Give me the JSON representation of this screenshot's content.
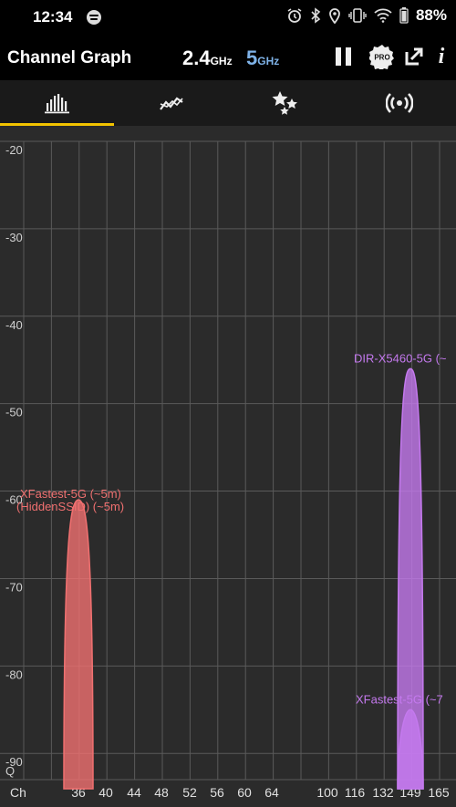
{
  "status_bar": {
    "time": "12:34",
    "battery": "88%",
    "icons": [
      "spotify-icon",
      "alarm-icon",
      "bluetooth-icon",
      "location-icon",
      "vibrate-icon",
      "wifi-icon",
      "battery-icon"
    ]
  },
  "toolbar": {
    "title": "Channel Graph",
    "band_24": "2.4",
    "band_24_unit": "GHz",
    "band_5": "5",
    "band_5_unit": "GHz",
    "active_band": "5GHz",
    "pro_label": "PRO",
    "info_label": "i",
    "colors": {
      "active_band": "#7fb3e8"
    }
  },
  "tabs": [
    {
      "name": "channel-graph",
      "icon": "bar-chart-icon",
      "active": true
    },
    {
      "name": "time-graph",
      "icon": "line-graph-icon",
      "active": false
    },
    {
      "name": "channel-rating",
      "icon": "stars-icon",
      "active": false
    },
    {
      "name": "ap-list",
      "icon": "wifi-signal-icon",
      "active": false
    }
  ],
  "chart_data": {
    "type": "area",
    "y_label_bottom": "Q",
    "x_label_left": "Ch",
    "ylim": [
      -93,
      -20
    ],
    "y_ticks": [
      -20,
      -30,
      -40,
      -50,
      -60,
      -70,
      -80,
      -90
    ],
    "x_ticks": [
      "36",
      "40",
      "44",
      "48",
      "52",
      "56",
      "60",
      "64",
      "100",
      "116",
      "132",
      "149",
      "165"
    ],
    "grid": true,
    "networks": [
      {
        "name": "XFastest-5G (~5m)",
        "channel": "36",
        "signal": -61,
        "color": "#f07070"
      },
      {
        "name": "(HiddenSSID) (~5m)",
        "channel": "36",
        "signal": -61,
        "color": "#f07070"
      },
      {
        "name": "DIR-X5460-5G (~",
        "channel": "149",
        "signal": -46,
        "color": "#c479ee"
      },
      {
        "name": "XFastest-5G (~7",
        "channel": "149",
        "signal": -85,
        "color": "#c479ee"
      }
    ]
  }
}
